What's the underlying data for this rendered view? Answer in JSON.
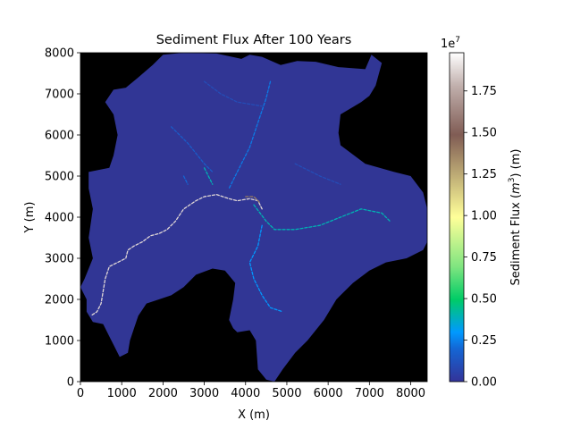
{
  "chart_data": {
    "type": "heatmap",
    "title": "Sediment Flux After 100 Years",
    "xlabel": "X (m)",
    "ylabel": "Y (m)",
    "xlim": [
      0,
      8400
    ],
    "ylim": [
      0,
      8000
    ],
    "xticks": [
      0,
      1000,
      2000,
      3000,
      4000,
      5000,
      6000,
      7000,
      8000
    ],
    "yticks": [
      0,
      1000,
      2000,
      3000,
      4000,
      5000,
      6000,
      7000,
      8000
    ],
    "background_color": "#000000",
    "watershed_color": "#313695",
    "colormap": "terrain",
    "colorbar": {
      "label_prefix": "Sediment Flux (",
      "label_unit_base": "m",
      "label_unit_exp": "3",
      "label_suffix": ") (m)",
      "offset_base": "1e",
      "offset_exp": "7",
      "min": 0,
      "max": 1.98,
      "ticks": [
        "0.00",
        "0.25",
        "0.50",
        "0.75",
        "1.00",
        "1.25",
        "1.50",
        "1.75"
      ],
      "tick_values": [
        0,
        0.25,
        0.5,
        0.75,
        1.0,
        1.25,
        1.5,
        1.75
      ]
    },
    "watershed_outline": [
      [
        1750,
        7700
      ],
      [
        2000,
        7950
      ],
      [
        2500,
        8000
      ],
      [
        3300,
        7980
      ],
      [
        3900,
        7850
      ],
      [
        4100,
        7950
      ],
      [
        4400,
        7900
      ],
      [
        4850,
        7700
      ],
      [
        5250,
        7800
      ],
      [
        5700,
        7780
      ],
      [
        6250,
        7650
      ],
      [
        6900,
        7600
      ],
      [
        7050,
        7950
      ],
      [
        7300,
        7750
      ],
      [
        7150,
        7200
      ],
      [
        7000,
        6950
      ],
      [
        6800,
        6800
      ],
      [
        6300,
        6500
      ],
      [
        6250,
        6050
      ],
      [
        6300,
        5750
      ],
      [
        6900,
        5300
      ],
      [
        7600,
        5100
      ],
      [
        8000,
        5000
      ],
      [
        8300,
        4600
      ],
      [
        8400,
        4200
      ],
      [
        8450,
        3500
      ],
      [
        8300,
        3200
      ],
      [
        7900,
        3000
      ],
      [
        7400,
        2900
      ],
      [
        7000,
        2700
      ],
      [
        6600,
        2400
      ],
      [
        6200,
        2000
      ],
      [
        5900,
        1500
      ],
      [
        5500,
        1000
      ],
      [
        5200,
        700
      ],
      [
        4900,
        300
      ],
      [
        4700,
        0
      ],
      [
        4500,
        50
      ],
      [
        4300,
        300
      ],
      [
        4250,
        1000
      ],
      [
        4100,
        1250
      ],
      [
        3800,
        1200
      ],
      [
        3700,
        1300
      ],
      [
        3600,
        1500
      ],
      [
        3700,
        2000
      ],
      [
        3750,
        2400
      ],
      [
        3500,
        2700
      ],
      [
        3200,
        2750
      ],
      [
        2800,
        2600
      ],
      [
        2500,
        2300
      ],
      [
        2200,
        2100
      ],
      [
        1900,
        2000
      ],
      [
        1600,
        1900
      ],
      [
        1400,
        1600
      ],
      [
        1300,
        1300
      ],
      [
        1200,
        1000
      ],
      [
        1150,
        700
      ],
      [
        950,
        600
      ],
      [
        850,
        800
      ],
      [
        700,
        1100
      ],
      [
        550,
        1400
      ],
      [
        300,
        1450
      ],
      [
        150,
        1700
      ],
      [
        150,
        2000
      ],
      [
        0,
        2300
      ],
      [
        100,
        2500
      ],
      [
        300,
        3000
      ],
      [
        200,
        3500
      ],
      [
        300,
        4200
      ],
      [
        200,
        4700
      ],
      [
        200,
        5100
      ],
      [
        700,
        5200
      ],
      [
        800,
        5500
      ],
      [
        900,
        6000
      ],
      [
        800,
        6500
      ],
      [
        600,
        6800
      ],
      [
        800,
        7100
      ],
      [
        1100,
        7150
      ],
      [
        1400,
        7400
      ]
    ],
    "channels": [
      {
        "value": 0.05,
        "points": [
          [
            3000,
            7300
          ],
          [
            3400,
            7000
          ],
          [
            3800,
            6800
          ],
          [
            4400,
            6700
          ]
        ]
      },
      {
        "value": 0.08,
        "points": [
          [
            2200,
            6200
          ],
          [
            2600,
            5800
          ],
          [
            3000,
            5300
          ],
          [
            3200,
            5100
          ]
        ]
      },
      {
        "value": 0.12,
        "points": [
          [
            4600,
            7300
          ],
          [
            4500,
            6900
          ],
          [
            4300,
            6300
          ],
          [
            4100,
            5700
          ],
          [
            3800,
            5100
          ],
          [
            3600,
            4700
          ]
        ]
      },
      {
        "value": 0.2,
        "points": [
          [
            3000,
            5200
          ],
          [
            3100,
            5000
          ],
          [
            3200,
            4800
          ]
        ]
      },
      {
        "value": 0.05,
        "points": [
          [
            5200,
            5300
          ],
          [
            5800,
            5000
          ],
          [
            6300,
            4800
          ]
        ]
      },
      {
        "value": 0.2,
        "points": [
          [
            4200,
            4300
          ],
          [
            4500,
            3900
          ],
          [
            4700,
            3700
          ],
          [
            5200,
            3700
          ],
          [
            5800,
            3800
          ],
          [
            6300,
            4000
          ],
          [
            6800,
            4200
          ],
          [
            7300,
            4100
          ],
          [
            7500,
            3900
          ]
        ]
      },
      {
        "value": 0.15,
        "points": [
          [
            4400,
            3800
          ],
          [
            4300,
            3300
          ],
          [
            4100,
            2900
          ],
          [
            4200,
            2500
          ],
          [
            4400,
            2100
          ],
          [
            4600,
            1800
          ],
          [
            4900,
            1700
          ]
        ]
      },
      {
        "value": 0.1,
        "points": [
          [
            2500,
            5000
          ],
          [
            2600,
            4800
          ]
        ]
      },
      {
        "value": 0.95,
        "points": [
          [
            4400,
            4200
          ],
          [
            4300,
            4400
          ],
          [
            4100,
            4450
          ],
          [
            3800,
            4400
          ],
          [
            3600,
            4450
          ],
          [
            3300,
            4550
          ],
          [
            3000,
            4500
          ],
          [
            2800,
            4400
          ],
          [
            2500,
            4200
          ],
          [
            2300,
            3900
          ],
          [
            2100,
            3700
          ],
          [
            1900,
            3600
          ],
          [
            1700,
            3550
          ],
          [
            1500,
            3400
          ],
          [
            1300,
            3300
          ],
          [
            1150,
            3200
          ],
          [
            1100,
            3000
          ],
          [
            900,
            2900
          ],
          [
            700,
            2800
          ],
          [
            600,
            2500
          ],
          [
            550,
            2200
          ],
          [
            500,
            1900
          ],
          [
            400,
            1700
          ],
          [
            250,
            1600
          ]
        ]
      },
      {
        "value": 0.7,
        "points": [
          [
            4000,
            4500
          ],
          [
            4200,
            4500
          ],
          [
            4350,
            4350
          ]
        ]
      }
    ]
  }
}
